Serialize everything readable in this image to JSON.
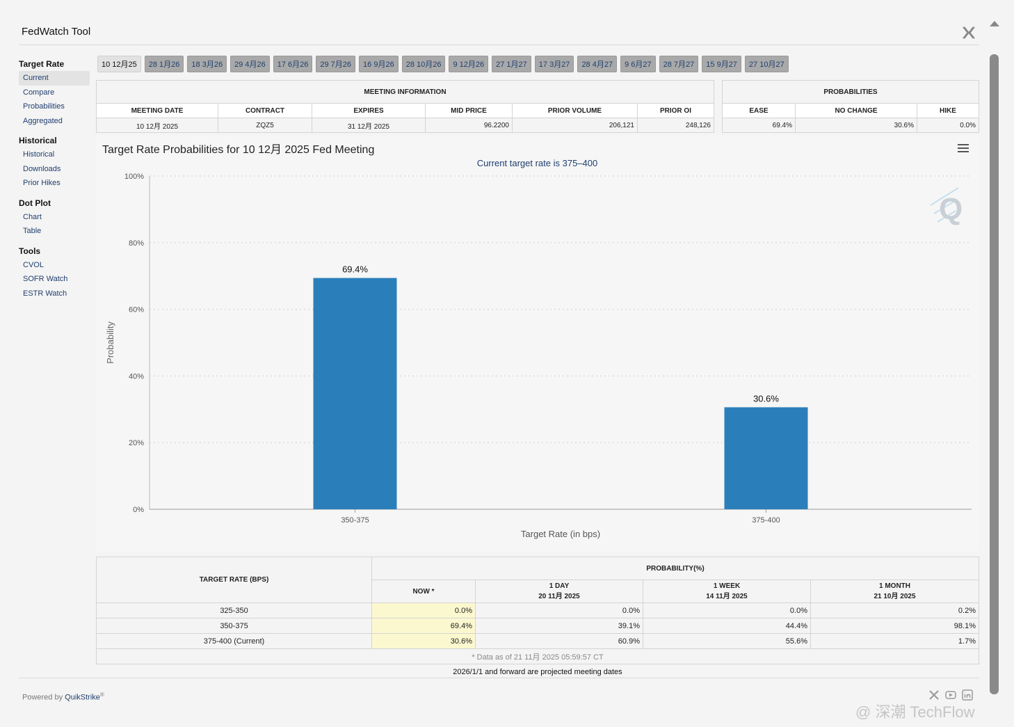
{
  "header": {
    "title": "FedWatch Tool",
    "close_icon": "x-logo-icon"
  },
  "sidebar": {
    "groups": [
      {
        "title": "Target Rate",
        "items": [
          "Current",
          "Compare",
          "Probabilities",
          "Aggregated"
        ]
      },
      {
        "title": "Historical",
        "items": [
          "Historical",
          "Downloads",
          "Prior Hikes"
        ]
      },
      {
        "title": "Dot Plot",
        "items": [
          "Chart",
          "Table"
        ]
      },
      {
        "title": "Tools",
        "items": [
          "CVOL",
          "SOFR Watch",
          "ESTR Watch"
        ]
      }
    ],
    "active_item": "Current"
  },
  "tabs": [
    "10 12月25",
    "28 1月26",
    "18 3月26",
    "29 4月26",
    "17 6月26",
    "29 7月26",
    "16 9月26",
    "28 10月26",
    "9 12月26",
    "27 1月27",
    "17 3月27",
    "28 4月27",
    "9 6月27",
    "28 7月27",
    "15 9月27",
    "27 10月27"
  ],
  "meeting_info": {
    "title": "MEETING INFORMATION",
    "headers": [
      "MEETING DATE",
      "CONTRACT",
      "EXPIRES",
      "MID PRICE",
      "PRIOR VOLUME",
      "PRIOR OI"
    ],
    "values": [
      "10 12月 2025",
      "ZQZ5",
      "31 12月 2025",
      "96.2200",
      "206,121",
      "248,126"
    ]
  },
  "probabilities": {
    "title": "PROBABILITIES",
    "headers": [
      "EASE",
      "NO CHANGE",
      "HIKE"
    ],
    "values": [
      "69.4%",
      "30.6%",
      "0.0%"
    ]
  },
  "chart": {
    "title": "Target Rate Probabilities for 10 12月 2025 Fed Meeting",
    "subtitle": "Current target rate is 375–400"
  },
  "chart_data": {
    "type": "bar",
    "categories": [
      "350-375",
      "375-400"
    ],
    "values": [
      69.4,
      30.6
    ],
    "data_labels": [
      "69.4%",
      "30.6%"
    ],
    "title": "Target Rate Probabilities for 10 12月 2025 Fed Meeting",
    "subtitle": "Current target rate is 375–400",
    "xlabel": "Target Rate (in bps)",
    "ylabel": "Probability",
    "ylim": [
      0,
      100
    ],
    "yticks": [
      "0%",
      "20%",
      "40%",
      "60%",
      "80%",
      "100%"
    ],
    "color": "#2a7fba"
  },
  "prob_table": {
    "col_target": "TARGET RATE (BPS)",
    "col_group": "PROBABILITY(%)",
    "now_label": "NOW *",
    "day_label": "1 DAY",
    "day_date": "20 11月 2025",
    "week_label": "1 WEEK",
    "week_date": "14 11月 2025",
    "month_label": "1 MONTH",
    "month_date": "21 10月 2025",
    "rows": [
      {
        "rate": "325-350",
        "now": "0.0%",
        "day": "0.0%",
        "week": "0.0%",
        "month": "0.2%"
      },
      {
        "rate": "350-375",
        "now": "69.4%",
        "day": "39.1%",
        "week": "44.4%",
        "month": "98.1%"
      },
      {
        "rate": "375-400 (Current)",
        "now": "30.6%",
        "day": "60.9%",
        "week": "55.6%",
        "month": "1.7%"
      }
    ],
    "footnote": "* Data as of 21 11月 2025 05:59:57 CT"
  },
  "projected_note": "2026/1/1 and forward are projected meeting dates",
  "footer": {
    "powered_by": "Powered by",
    "brand": "QuikStrike",
    "reg": "®"
  },
  "watermark": "@ 深潮 TechFlow"
}
